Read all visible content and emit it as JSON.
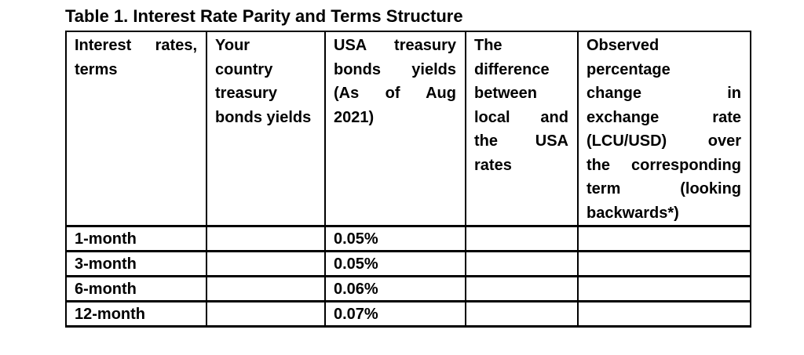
{
  "title": "Table 1. Interest Rate Parity and Terms Structure",
  "colors": {
    "text": "#000000",
    "border": "#000000",
    "background": "#ffffff"
  },
  "table": {
    "columns": [
      {
        "id": "terms",
        "header_lines": [
          "Interest rates,",
          "terms"
        ]
      },
      {
        "id": "your_country",
        "header_lines": [
          "Your",
          "country",
          "treasury",
          "bonds yields"
        ]
      },
      {
        "id": "usa",
        "header_lines": [
          "USA treasury",
          "bonds yields",
          "(As of Aug",
          "2021)"
        ]
      },
      {
        "id": "difference",
        "header_lines": [
          "The",
          "difference",
          "between",
          "local and",
          "the USA",
          "rates"
        ]
      },
      {
        "id": "observed",
        "header_lines": [
          "Observed",
          "percentage",
          "change in",
          "exchange rate",
          "(LCU/USD) over",
          "the corresponding",
          "term (looking",
          "backwards*)"
        ]
      }
    ],
    "rows": [
      {
        "term": "1-month",
        "your_country_yield": "",
        "usa_yield": "0.05%",
        "difference": "",
        "observed_change": ""
      },
      {
        "term": "3-month",
        "your_country_yield": "",
        "usa_yield": "0.05%",
        "difference": "",
        "observed_change": ""
      },
      {
        "term": "6-month",
        "your_country_yield": "",
        "usa_yield": "0.06%",
        "difference": "",
        "observed_change": ""
      },
      {
        "term": "12-month",
        "your_country_yield": "",
        "usa_yield": "0.07%",
        "difference": "",
        "observed_change": ""
      }
    ]
  }
}
